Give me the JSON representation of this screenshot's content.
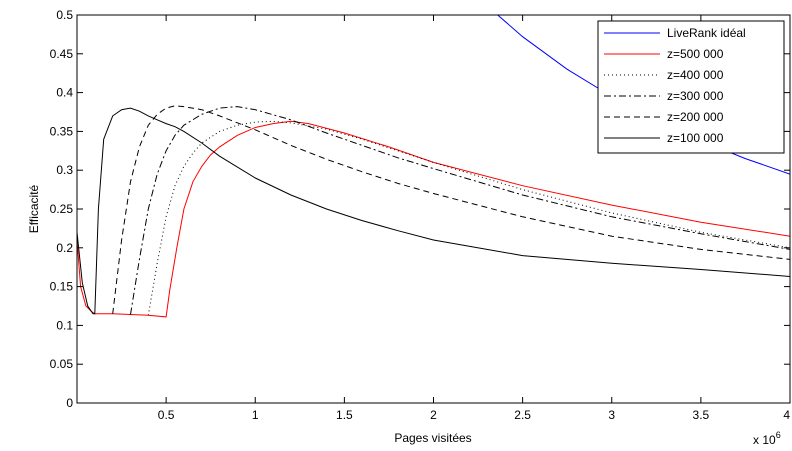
{
  "chart_data": {
    "type": "line",
    "xlabel": "Pages visitées",
    "ylabel": "Efficacité",
    "x_multiplier_label": "x 10",
    "x_multiplier_exponent": "6",
    "xlim": [
      0,
      4
    ],
    "ylim": [
      0,
      0.5
    ],
    "x_ticks": [
      0.5,
      1,
      1.5,
      2,
      2.5,
      3,
      3.5,
      4
    ],
    "x_tick_labels": [
      "0.5",
      "1",
      "1.5",
      "2",
      "2.5",
      "3",
      "3.5",
      "4"
    ],
    "y_ticks": [
      0,
      0.05,
      0.1,
      0.15,
      0.2,
      0.25,
      0.3,
      0.35,
      0.4,
      0.45,
      0.5
    ],
    "y_tick_labels": [
      "0",
      "0.05",
      "0.1",
      "0.15",
      "0.2",
      "0.25",
      "0.3",
      "0.35",
      "0.4",
      "0.45",
      "0.5"
    ],
    "grid": false,
    "legend_position": "top-right",
    "series": [
      {
        "name": "LiveRank idéal",
        "color": "#0000ff",
        "dash": "solid",
        "x": [
          2.36,
          2.5,
          2.75,
          3.0,
          3.25,
          3.5,
          3.75,
          4.0
        ],
        "y": [
          0.5,
          0.472,
          0.43,
          0.395,
          0.365,
          0.338,
          0.315,
          0.295
        ]
      },
      {
        "name": "z=500 000",
        "color": "#ff0000",
        "dash": "solid",
        "x": [
          0.0,
          0.02,
          0.05,
          0.08,
          0.1,
          0.2,
          0.3,
          0.4,
          0.5,
          0.52,
          0.56,
          0.6,
          0.65,
          0.7,
          0.75,
          0.8,
          0.9,
          1.0,
          1.1,
          1.2,
          1.3,
          1.5,
          1.75,
          2.0,
          2.5,
          3.0,
          3.5,
          4.0
        ],
        "y": [
          0.21,
          0.15,
          0.125,
          0.118,
          0.115,
          0.115,
          0.114,
          0.113,
          0.111,
          0.145,
          0.2,
          0.25,
          0.285,
          0.305,
          0.32,
          0.33,
          0.345,
          0.355,
          0.36,
          0.363,
          0.36,
          0.348,
          0.33,
          0.31,
          0.28,
          0.255,
          0.233,
          0.215
        ]
      },
      {
        "name": "z=400 000",
        "color": "#000000",
        "dash": "1 3",
        "x": [
          0.4,
          0.45,
          0.5,
          0.55,
          0.6,
          0.65,
          0.7,
          0.8,
          0.9,
          1.0,
          1.1,
          1.2,
          1.4,
          1.6,
          1.8,
          2.0,
          2.5,
          3.0,
          3.5,
          4.0
        ],
        "y": [
          0.113,
          0.18,
          0.24,
          0.28,
          0.305,
          0.322,
          0.335,
          0.35,
          0.358,
          0.362,
          0.363,
          0.361,
          0.353,
          0.34,
          0.325,
          0.31,
          0.275,
          0.245,
          0.22,
          0.2
        ]
      },
      {
        "name": "z=300 000",
        "color": "#000000",
        "dash": "7 3 2 3",
        "x": [
          0.3,
          0.35,
          0.4,
          0.45,
          0.5,
          0.55,
          0.6,
          0.7,
          0.8,
          0.9,
          1.0,
          1.2,
          1.4,
          1.6,
          1.8,
          2.0,
          2.5,
          3.0,
          3.5,
          4.0
        ],
        "y": [
          0.114,
          0.185,
          0.25,
          0.295,
          0.325,
          0.345,
          0.358,
          0.372,
          0.38,
          0.382,
          0.378,
          0.365,
          0.348,
          0.332,
          0.316,
          0.302,
          0.268,
          0.24,
          0.218,
          0.198
        ]
      },
      {
        "name": "z=200 000",
        "color": "#000000",
        "dash": "6 4",
        "x": [
          0.2,
          0.25,
          0.3,
          0.35,
          0.4,
          0.45,
          0.5,
          0.55,
          0.6,
          0.7,
          0.8,
          1.0,
          1.2,
          1.4,
          1.6,
          1.8,
          2.0,
          2.5,
          3.0,
          3.5,
          4.0
        ],
        "y": [
          0.115,
          0.21,
          0.285,
          0.33,
          0.358,
          0.372,
          0.38,
          0.383,
          0.382,
          0.378,
          0.37,
          0.352,
          0.332,
          0.314,
          0.298,
          0.283,
          0.27,
          0.24,
          0.215,
          0.198,
          0.185
        ]
      },
      {
        "name": "z=100 000",
        "color": "#000000",
        "dash": "solid",
        "x": [
          0.0,
          0.03,
          0.06,
          0.09,
          0.1,
          0.12,
          0.15,
          0.2,
          0.25,
          0.3,
          0.35,
          0.4,
          0.45,
          0.5,
          0.55,
          0.6,
          0.7,
          0.8,
          1.0,
          1.2,
          1.4,
          1.6,
          1.8,
          2.0,
          2.5,
          3.0,
          3.5,
          4.0
        ],
        "y": [
          0.22,
          0.155,
          0.125,
          0.115,
          0.115,
          0.25,
          0.34,
          0.37,
          0.378,
          0.38,
          0.376,
          0.37,
          0.365,
          0.36,
          0.356,
          0.35,
          0.335,
          0.318,
          0.29,
          0.268,
          0.25,
          0.235,
          0.222,
          0.21,
          0.19,
          0.18,
          0.172,
          0.163
        ]
      }
    ]
  }
}
